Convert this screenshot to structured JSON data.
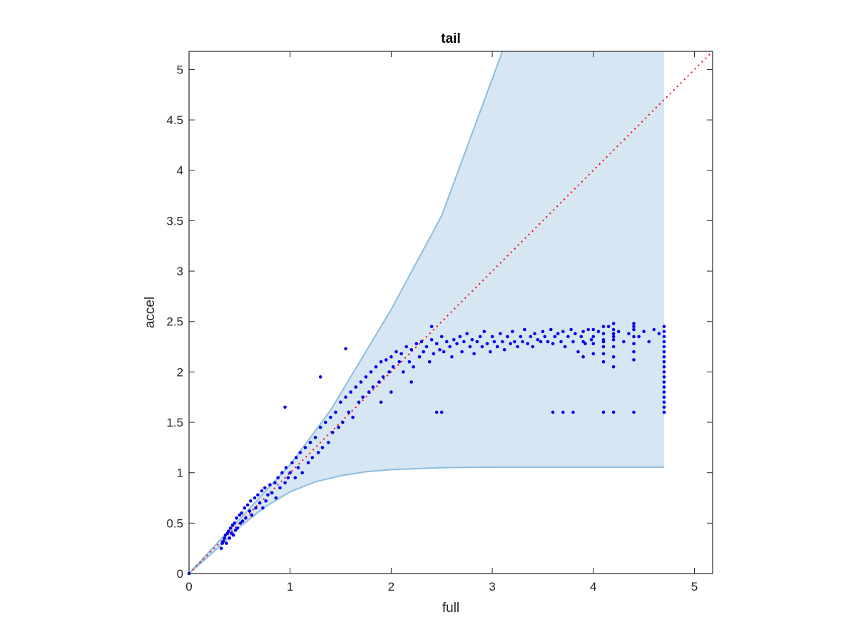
{
  "chart_data": {
    "type": "scatter",
    "title": "tail",
    "xlabel": "full",
    "ylabel": "accel",
    "xlim": [
      0,
      5.18
    ],
    "ylim": [
      0,
      5.18
    ],
    "x_ticks": [
      "0",
      "1",
      "2",
      "3",
      "4",
      "5"
    ],
    "y_ticks": [
      "0",
      "0.5",
      "1",
      "1.5",
      "2",
      "2.5",
      "3",
      "3.5",
      "4",
      "4.5",
      "5"
    ],
    "grid": false,
    "legend": "none",
    "colors": {
      "points": "#0000ee",
      "reference_line": "#ff0000",
      "band_fill": "#d6e6f3",
      "band_edge": "#8dbde0",
      "axes": "#262626"
    },
    "reference_line": {
      "style": "dotted",
      "from": [
        0,
        0
      ],
      "to": [
        5.18,
        5.18
      ]
    },
    "band": {
      "x_max": 4.7,
      "upper_boundary": [
        [
          0,
          0
        ],
        [
          1.0,
          1.08
        ],
        [
          1.4,
          1.62
        ],
        [
          2.0,
          2.62
        ],
        [
          2.5,
          3.55
        ],
        [
          3.1,
          5.18
        ],
        [
          4.7,
          5.18
        ]
      ],
      "lower_boundary": [
        [
          0,
          0
        ],
        [
          0.25,
          0.22
        ],
        [
          0.5,
          0.46
        ],
        [
          0.75,
          0.66
        ],
        [
          1.0,
          0.81
        ],
        [
          1.25,
          0.91
        ],
        [
          1.5,
          0.97
        ],
        [
          1.75,
          1.01
        ],
        [
          2.0,
          1.03
        ],
        [
          2.5,
          1.05
        ],
        [
          3.0,
          1.055
        ],
        [
          4.7,
          1.055
        ]
      ]
    },
    "series": [
      {
        "points": [
          [
            0.0,
            0.0
          ],
          [
            0.32,
            0.25
          ],
          [
            0.33,
            0.3
          ],
          [
            0.34,
            0.32
          ],
          [
            0.35,
            0.35
          ],
          [
            0.36,
            0.38
          ],
          [
            0.37,
            0.3
          ],
          [
            0.38,
            0.4
          ],
          [
            0.39,
            0.42
          ],
          [
            0.4,
            0.35
          ],
          [
            0.41,
            0.45
          ],
          [
            0.42,
            0.4
          ],
          [
            0.43,
            0.48
          ],
          [
            0.44,
            0.38
          ],
          [
            0.45,
            0.5
          ],
          [
            0.46,
            0.43
          ],
          [
            0.47,
            0.55
          ],
          [
            0.48,
            0.45
          ],
          [
            0.5,
            0.58
          ],
          [
            0.51,
            0.5
          ],
          [
            0.52,
            0.6
          ],
          [
            0.53,
            0.52
          ],
          [
            0.55,
            0.65
          ],
          [
            0.56,
            0.55
          ],
          [
            0.58,
            0.68
          ],
          [
            0.6,
            0.62
          ],
          [
            0.61,
            0.72
          ],
          [
            0.62,
            0.58
          ],
          [
            0.65,
            0.75
          ],
          [
            0.66,
            0.65
          ],
          [
            0.68,
            0.78
          ],
          [
            0.7,
            0.7
          ],
          [
            0.72,
            0.82
          ],
          [
            0.73,
            0.65
          ],
          [
            0.75,
            0.85
          ],
          [
            0.76,
            0.72
          ],
          [
            0.78,
            0.78
          ],
          [
            0.8,
            0.88
          ],
          [
            0.82,
            0.8
          ],
          [
            0.85,
            0.9
          ],
          [
            0.86,
            0.75
          ],
          [
            0.88,
            0.95
          ],
          [
            0.9,
            0.85
          ],
          [
            0.92,
            1.0
          ],
          [
            0.95,
            0.9
          ],
          [
            0.96,
            1.05
          ],
          [
            0.98,
            0.95
          ],
          [
            1.0,
            1.0
          ],
          [
            1.02,
            1.1
          ],
          [
            1.05,
            0.95
          ],
          [
            1.06,
            1.15
          ],
          [
            1.08,
            1.05
          ],
          [
            1.1,
            1.2
          ],
          [
            1.12,
            1.0
          ],
          [
            1.15,
            1.25
          ],
          [
            1.18,
            1.1
          ],
          [
            1.2,
            1.3
          ],
          [
            1.22,
            1.15
          ],
          [
            1.25,
            1.35
          ],
          [
            1.28,
            1.2
          ],
          [
            1.3,
            1.45
          ],
          [
            1.32,
            1.25
          ],
          [
            1.35,
            1.5
          ],
          [
            1.38,
            1.3
          ],
          [
            1.4,
            1.55
          ],
          [
            1.42,
            1.4
          ],
          [
            1.45,
            1.6
          ],
          [
            1.48,
            1.45
          ],
          [
            1.5,
            1.7
          ],
          [
            1.52,
            1.5
          ],
          [
            1.55,
            1.75
          ],
          [
            1.58,
            1.6
          ],
          [
            1.6,
            1.8
          ],
          [
            1.62,
            1.55
          ],
          [
            1.65,
            1.85
          ],
          [
            1.68,
            1.7
          ],
          [
            1.7,
            1.9
          ],
          [
            1.72,
            1.75
          ],
          [
            1.75,
            1.95
          ],
          [
            1.78,
            1.8
          ],
          [
            1.8,
            2.0
          ],
          [
            1.82,
            1.85
          ],
          [
            1.85,
            2.05
          ],
          [
            1.88,
            1.9
          ],
          [
            1.9,
            2.1
          ],
          [
            1.92,
            1.95
          ],
          [
            1.95,
            2.12
          ],
          [
            1.98,
            2.0
          ],
          [
            2.0,
            2.15
          ],
          [
            2.02,
            2.05
          ],
          [
            2.05,
            2.2
          ],
          [
            2.08,
            2.1
          ],
          [
            2.1,
            2.18
          ],
          [
            2.12,
            2.0
          ],
          [
            2.15,
            2.25
          ],
          [
            2.18,
            2.1
          ],
          [
            2.2,
            2.22
          ],
          [
            2.22,
            2.05
          ],
          [
            2.25,
            2.28
          ],
          [
            2.28,
            2.15
          ],
          [
            2.3,
            2.3
          ],
          [
            2.32,
            2.2
          ],
          [
            2.35,
            2.25
          ],
          [
            2.38,
            2.1
          ],
          [
            2.4,
            2.32
          ],
          [
            2.42,
            2.18
          ],
          [
            2.45,
            2.28
          ],
          [
            2.48,
            2.22
          ],
          [
            2.5,
            2.35
          ],
          [
            2.52,
            2.2
          ],
          [
            2.55,
            2.3
          ],
          [
            2.58,
            2.25
          ],
          [
            2.6,
            2.15
          ],
          [
            2.62,
            2.32
          ],
          [
            2.65,
            2.28
          ],
          [
            2.68,
            2.35
          ],
          [
            2.7,
            2.2
          ],
          [
            2.72,
            2.3
          ],
          [
            2.75,
            2.38
          ],
          [
            2.78,
            2.25
          ],
          [
            2.8,
            2.32
          ],
          [
            2.82,
            2.18
          ],
          [
            2.85,
            2.3
          ],
          [
            2.88,
            2.35
          ],
          [
            2.9,
            2.25
          ],
          [
            2.92,
            2.4
          ],
          [
            2.95,
            2.28
          ],
          [
            2.98,
            2.2
          ],
          [
            3.0,
            2.35
          ],
          [
            3.02,
            2.3
          ],
          [
            3.05,
            2.25
          ],
          [
            3.08,
            2.38
          ],
          [
            3.1,
            2.3
          ],
          [
            3.12,
            2.22
          ],
          [
            3.15,
            2.35
          ],
          [
            3.18,
            2.28
          ],
          [
            3.2,
            2.4
          ],
          [
            3.22,
            2.3
          ],
          [
            3.25,
            2.25
          ],
          [
            3.28,
            2.35
          ],
          [
            3.3,
            2.3
          ],
          [
            3.32,
            2.42
          ],
          [
            3.35,
            2.28
          ],
          [
            3.38,
            2.35
          ],
          [
            3.4,
            2.25
          ],
          [
            3.42,
            2.38
          ],
          [
            3.45,
            2.32
          ],
          [
            3.48,
            2.3
          ],
          [
            3.5,
            2.4
          ],
          [
            3.52,
            2.35
          ],
          [
            3.55,
            2.3
          ],
          [
            3.58,
            2.42
          ],
          [
            3.6,
            2.28
          ],
          [
            3.62,
            2.35
          ],
          [
            3.65,
            2.38
          ],
          [
            3.68,
            2.3
          ],
          [
            3.7,
            2.4
          ],
          [
            3.72,
            2.25
          ],
          [
            3.75,
            2.35
          ],
          [
            3.78,
            2.42
          ],
          [
            3.8,
            2.3
          ],
          [
            3.82,
            2.38
          ],
          [
            3.85,
            2.2
          ],
          [
            3.88,
            2.35
          ],
          [
            3.9,
            2.4
          ],
          [
            3.92,
            2.28
          ],
          [
            3.95,
            2.42
          ],
          [
            3.98,
            2.32
          ],
          [
            4.0,
            2.35
          ],
          [
            4.05,
            2.4
          ],
          [
            4.1,
            2.3
          ],
          [
            4.15,
            2.45
          ],
          [
            4.2,
            2.35
          ],
          [
            4.25,
            2.4
          ],
          [
            4.3,
            2.3
          ],
          [
            4.35,
            2.38
          ],
          [
            4.4,
            2.45
          ],
          [
            4.45,
            2.35
          ],
          [
            4.5,
            2.4
          ],
          [
            4.55,
            2.3
          ],
          [
            4.6,
            2.42
          ],
          [
            4.65,
            2.38
          ],
          [
            4.7,
            2.45
          ],
          [
            4.7,
            2.4
          ],
          [
            4.7,
            2.35
          ],
          [
            4.7,
            2.3
          ],
          [
            4.7,
            2.25
          ],
          [
            4.7,
            2.2
          ],
          [
            4.7,
            2.15
          ],
          [
            4.7,
            2.1
          ],
          [
            4.7,
            2.05
          ],
          [
            4.7,
            2.0
          ],
          [
            4.7,
            1.95
          ],
          [
            4.7,
            1.9
          ],
          [
            4.7,
            1.85
          ],
          [
            4.7,
            1.8
          ],
          [
            4.7,
            1.75
          ],
          [
            4.7,
            1.7
          ],
          [
            4.7,
            1.65
          ],
          [
            4.7,
            1.6
          ],
          [
            4.2,
            2.48
          ],
          [
            4.2,
            2.42
          ],
          [
            4.2,
            2.38
          ],
          [
            4.2,
            2.32
          ],
          [
            4.2,
            2.25
          ],
          [
            4.2,
            2.15
          ],
          [
            4.2,
            2.05
          ],
          [
            4.4,
            2.48
          ],
          [
            4.4,
            2.42
          ],
          [
            4.4,
            2.35
          ],
          [
            4.4,
            2.28
          ],
          [
            4.4,
            2.2
          ],
          [
            4.4,
            2.12
          ],
          [
            4.1,
            2.45
          ],
          [
            4.1,
            2.38
          ],
          [
            4.1,
            2.32
          ],
          [
            4.1,
            2.25
          ],
          [
            4.1,
            2.18
          ],
          [
            4.1,
            2.1
          ],
          [
            4.0,
            2.42
          ],
          [
            4.0,
            2.28
          ],
          [
            4.0,
            2.18
          ],
          [
            3.9,
            2.3
          ],
          [
            3.9,
            2.15
          ],
          [
            3.6,
            1.6
          ],
          [
            3.7,
            1.6
          ],
          [
            3.8,
            1.6
          ],
          [
            4.1,
            1.6
          ],
          [
            4.2,
            1.6
          ],
          [
            4.4,
            1.6
          ],
          [
            4.7,
            1.6
          ],
          [
            2.45,
            1.6
          ],
          [
            2.5,
            1.6
          ],
          [
            2.4,
            2.45
          ],
          [
            2.0,
            1.8
          ],
          [
            2.2,
            1.9
          ],
          [
            1.9,
            1.7
          ],
          [
            1.55,
            2.23
          ],
          [
            1.3,
            1.95
          ],
          [
            0.95,
            1.65
          ]
        ]
      }
    ]
  }
}
